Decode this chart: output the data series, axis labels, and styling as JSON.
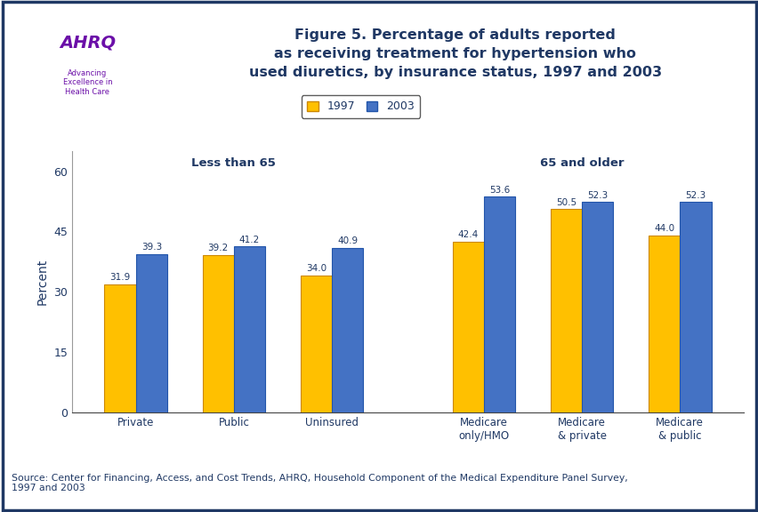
{
  "title": "Figure 5. Percentage of adults reported\nas receiving treatment for hypertension who\nused diuretics, by insurance status, 1997 and 2003",
  "ylabel": "Percent",
  "yticks": [
    0,
    15,
    30,
    45,
    60
  ],
  "ylim": [
    0,
    65
  ],
  "background_color": "#ffffff",
  "plot_bg_color": "#ffffff",
  "bar_color_1997": "#FFC000",
  "bar_color_2003": "#4472C4",
  "border_color_1997": "#CC8800",
  "border_color_2003": "#2255AA",
  "groups": [
    {
      "label": "Private",
      "val1997": 31.9,
      "val2003": 39.3
    },
    {
      "label": "Public",
      "val1997": 39.2,
      "val2003": 41.2
    },
    {
      "label": "Uninsured",
      "val1997": 34.0,
      "val2003": 40.9
    },
    {
      "label": "Medicare\nonly/HMO",
      "val1997": 42.4,
      "val2003": 53.6
    },
    {
      "label": "Medicare\n& private",
      "val1997": 50.5,
      "val2003": 52.3
    },
    {
      "label": "Medicare\n& public",
      "val1997": 44.0,
      "val2003": 52.3
    }
  ],
  "group_labels_less65": "Less than 65",
  "group_labels_65plus": "65 and older",
  "legend_1997": "1997",
  "legend_2003": "2003",
  "source_text": "Source: Center for Financing, Access, and Cost Trends, AHRQ, Household Component of the Medical Expenditure Panel Survey,\n1997 and 2003",
  "title_color": "#1F3864",
  "axis_label_color": "#1F3864",
  "annotation_color": "#1F3864",
  "group_header_color": "#1F3864",
  "source_color": "#1F3864",
  "header_bar_color": "#1F3864",
  "outer_border_color": "#1F3864",
  "logo_bg_color": "#29ABE2",
  "logo_text_color": "#6B0FA8"
}
